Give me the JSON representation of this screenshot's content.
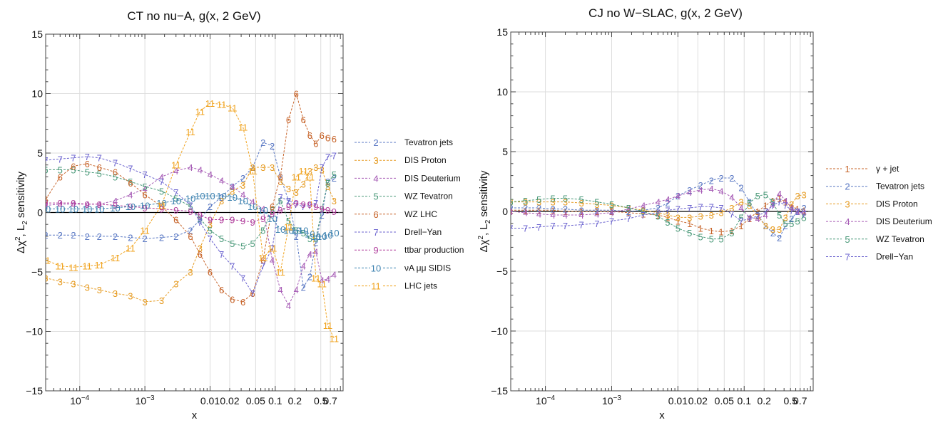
{
  "chart_data": [
    {
      "type": "line",
      "title": "CT no nu−A, g(x, 2 GeV)",
      "xlabel": "x",
      "ylabel_main": "Δχ",
      "ylabel_sup": "2",
      "ylabel_mid": ", L",
      "ylabel_sub": "2",
      "ylabel_end": " sensitivity",
      "xscale": "log",
      "xlim": [
        3e-05,
        1.1
      ],
      "ylim": [
        -15,
        15
      ],
      "y_ticks": [
        -15,
        -10,
        -5,
        0,
        5,
        10,
        15
      ],
      "y_tick_labels": [
        "−15",
        "−10",
        "−5",
        "0",
        "5",
        "10",
        "15"
      ],
      "x_major_ticks": [
        {
          "v": 0.0001,
          "base": "10",
          "exp": "−4"
        },
        {
          "v": 0.001,
          "base": "10",
          "exp": "−3"
        },
        {
          "v": 0.01,
          "label": "0.01"
        },
        {
          "v": 0.02,
          "label": "0.02"
        },
        {
          "v": 0.05,
          "label": "0.05"
        },
        {
          "v": 0.1,
          "label": "0.1"
        },
        {
          "v": 0.2,
          "label": "0.2"
        },
        {
          "v": 0.5,
          "label": "0.5"
        },
        {
          "v": 0.7,
          "label": "0.7"
        }
      ],
      "grid": true,
      "legend_position": "right",
      "x": [
        3e-05,
        5e-05,
        8e-05,
        0.00013,
        0.0002,
        0.00035,
        0.0006,
        0.001,
        0.0018,
        0.003,
        0.005,
        0.007,
        0.01,
        0.015,
        0.022,
        0.032,
        0.045,
        0.065,
        0.09,
        0.12,
        0.16,
        0.21,
        0.27,
        0.34,
        0.42,
        0.52,
        0.64,
        0.8
      ],
      "series": [
        {
          "name": "Tevatron jets",
          "marker": "2",
          "color": "#5b79c4",
          "values": [
            -1.9,
            -1.9,
            -1.9,
            -2.0,
            -2.0,
            -2.0,
            -2.1,
            -2.2,
            -2.1,
            -2.0,
            -1.5,
            -0.6,
            0.5,
            1.3,
            2.2,
            2.9,
            3.8,
            5.9,
            5.6,
            3.0,
            1.0,
            -2.0,
            -6.3,
            -5.4,
            -2.5,
            -0.2,
            2.6,
            2.9
          ]
        },
        {
          "name": "DIS Proton",
          "marker": "3",
          "color": "#e69c24",
          "values": [
            -5.5,
            -5.8,
            -6.0,
            -6.3,
            -6.5,
            -6.8,
            -7.0,
            -7.5,
            -7.4,
            -6.0,
            -5.0,
            -3.0,
            -1.0,
            1.0,
            1.8,
            2.3,
            3.8,
            3.8,
            3.8,
            2.6,
            2.0,
            1.7,
            2.4,
            3.5,
            3.8,
            3.6,
            2.2,
            1.0
          ]
        },
        {
          "name": "DIS Deuterium",
          "marker": "4",
          "color": "#a65bb5",
          "values": [
            0.6,
            0.7,
            0.7,
            0.7,
            0.7,
            1.0,
            1.5,
            2.0,
            3.0,
            3.5,
            3.8,
            3.6,
            3.2,
            2.7,
            2.2,
            1.5,
            0.9,
            0.3,
            -4.0,
            -6.5,
            -7.8,
            -6.5,
            -4.5,
            -3.5,
            -3.3,
            -5.7,
            -5.6,
            -5.2
          ]
        },
        {
          "name": "WZ Tevatron",
          "marker": "5",
          "color": "#4b9a7a",
          "values": [
            3.6,
            3.6,
            3.6,
            3.4,
            3.3,
            3.0,
            2.6,
            2.2,
            1.8,
            1.2,
            0.5,
            -0.5,
            -1.5,
            -2.2,
            -2.6,
            -2.8,
            -2.6,
            -1.5,
            0.2,
            1.0,
            -0.7,
            -1.5,
            -1.7,
            -2.2,
            -2.2,
            0.3,
            2.5,
            3.2
          ]
        },
        {
          "name": "WZ LHC",
          "marker": "6",
          "color": "#c7642a",
          "values": [
            1.1,
            3.0,
            3.9,
            4.1,
            3.8,
            3.4,
            2.5,
            1.5,
            0.5,
            -0.6,
            -2.0,
            -3.5,
            -5.0,
            -6.5,
            -7.3,
            -7.5,
            -6.8,
            -4.0,
            0.5,
            3.0,
            7.8,
            10.0,
            7.8,
            6.5,
            5.8,
            6.5,
            6.3,
            6.2
          ]
        },
        {
          "name": "Drell−Yan",
          "marker": "7",
          "color": "#6b63cf",
          "values": [
            4.4,
            4.5,
            4.6,
            4.7,
            4.6,
            4.2,
            3.7,
            3.2,
            2.6,
            1.7,
            0.6,
            -0.8,
            -2.2,
            -3.5,
            -4.5,
            -5.5,
            -6.8,
            -4.5,
            -3.0,
            1.3,
            1.0,
            0.7,
            0.5,
            0.6,
            0.8,
            3.8,
            4.7,
            4.8
          ]
        },
        {
          "name": "ttbar production",
          "marker": "9",
          "color": "#b03d9c",
          "values": [
            0.8,
            0.8,
            0.8,
            0.7,
            0.7,
            0.6,
            0.5,
            0.4,
            0.3,
            0.2,
            0.1,
            -0.2,
            -0.6,
            -0.6,
            -0.6,
            -0.7,
            -0.8,
            -0.5,
            -0.1,
            0.2,
            0.5,
            0.8,
            0.7,
            0.7,
            0.5,
            0.3,
            0.2,
            0.1
          ]
        },
        {
          "name": "νA μμ SIDIS",
          "marker": "10",
          "color": "#3d82b0",
          "values": [
            0.3,
            0.3,
            0.3,
            0.3,
            0.3,
            0.4,
            0.5,
            0.6,
            0.8,
            1.0,
            1.2,
            1.4,
            1.4,
            1.4,
            1.3,
            1.0,
            0.5,
            0.2,
            -0.5,
            -1.4,
            -1.5,
            -1.5,
            -1.5,
            -1.8,
            -2.0,
            -2.0,
            -1.9,
            -1.7
          ]
        },
        {
          "name": "LHC jets",
          "marker": "11",
          "color": "#f0a21c",
          "values": [
            -4.0,
            -4.5,
            -4.6,
            -4.5,
            -4.4,
            -3.8,
            -3.0,
            -1.5,
            0.6,
            4.0,
            6.8,
            8.5,
            9.2,
            9.1,
            8.8,
            7.2,
            3.5,
            -3.8,
            -3.0,
            -5.0,
            -1.2,
            3.0,
            3.5,
            3.0,
            -5.5,
            -6.0,
            -9.5,
            -10.6
          ]
        }
      ]
    },
    {
      "type": "line",
      "title": "CJ no W−SLAC, g(x, 2 GeV)",
      "xlabel": "x",
      "ylabel_main": "Δχ",
      "ylabel_sup": "2",
      "ylabel_mid": ", L",
      "ylabel_sub": "2",
      "ylabel_end": " sensitivity",
      "xscale": "log",
      "xlim": [
        3e-05,
        1.1
      ],
      "ylim": [
        -15,
        15
      ],
      "y_ticks": [
        -15,
        -10,
        -5,
        0,
        5,
        10,
        15
      ],
      "y_tick_labels": [
        "−15",
        "−10",
        "−5",
        "0",
        "5",
        "10",
        "15"
      ],
      "x_major_ticks": [
        {
          "v": 0.0001,
          "base": "10",
          "exp": "−4"
        },
        {
          "v": 0.001,
          "base": "10",
          "exp": "−3"
        },
        {
          "v": 0.01,
          "label": "0.01"
        },
        {
          "v": 0.02,
          "label": "0.02"
        },
        {
          "v": 0.05,
          "label": "0.05"
        },
        {
          "v": 0.1,
          "label": "0.1"
        },
        {
          "v": 0.2,
          "label": "0.2"
        },
        {
          "v": 0.5,
          "label": "0.5"
        },
        {
          "v": 0.7,
          "label": "0.7"
        }
      ],
      "grid": true,
      "legend_position": "right",
      "x": [
        3e-05,
        5e-05,
        8e-05,
        0.00013,
        0.0002,
        0.00035,
        0.0006,
        0.001,
        0.0018,
        0.003,
        0.005,
        0.007,
        0.01,
        0.015,
        0.022,
        0.032,
        0.045,
        0.065,
        0.09,
        0.12,
        0.16,
        0.21,
        0.27,
        0.34,
        0.42,
        0.52,
        0.64,
        0.8
      ],
      "series": [
        {
          "name": "γ + jet",
          "marker": "1",
          "color": "#c7642a",
          "values": [
            0.1,
            0.1,
            0.1,
            0.1,
            0.0,
            0.0,
            0.0,
            0.0,
            -0.1,
            -0.2,
            -0.3,
            -0.5,
            -0.8,
            -1.0,
            -1.4,
            -1.6,
            -1.7,
            -1.6,
            -1.2,
            -0.6,
            0.0,
            0.5,
            0.9,
            1.1,
            0.8,
            0.4,
            0.2,
            0.1
          ]
        },
        {
          "name": "Tevatron jets",
          "marker": "2",
          "color": "#5b79c4",
          "values": [
            0.3,
            0.3,
            0.3,
            0.2,
            0.2,
            0.1,
            0.1,
            0.1,
            0.0,
            0.1,
            0.3,
            0.7,
            1.3,
            1.8,
            2.2,
            2.6,
            2.8,
            2.8,
            2.0,
            0.8,
            -0.3,
            -1.2,
            -1.8,
            -2.2,
            -1.2,
            -0.6,
            0.0,
            0.3
          ]
        },
        {
          "name": "DIS Proton",
          "marker": "3",
          "color": "#e69c24",
          "values": [
            0.8,
            0.8,
            0.8,
            0.8,
            0.8,
            0.7,
            0.6,
            0.5,
            0.3,
            0.1,
            -0.1,
            -0.3,
            -0.5,
            -0.5,
            -0.4,
            -0.3,
            -0.1,
            0.3,
            0.8,
            0.5,
            -0.4,
            -1.2,
            -1.5,
            -1.5,
            -0.5,
            0.6,
            1.3,
            1.4
          ]
        },
        {
          "name": "DIS Deuterium",
          "marker": "4",
          "color": "#a65bb5",
          "values": [
            0.0,
            -0.1,
            -0.2,
            -0.3,
            -0.3,
            -0.3,
            -0.2,
            -0.1,
            0.2,
            0.5,
            0.8,
            1.0,
            1.3,
            1.6,
            1.8,
            1.9,
            1.7,
            1.2,
            0.3,
            -0.5,
            -0.6,
            -0.3,
            0.6,
            1.5,
            0.9,
            0.3,
            0.0,
            -0.1
          ]
        },
        {
          "name": "WZ Tevatron",
          "marker": "5",
          "color": "#4b9a7a",
          "values": [
            0.8,
            0.9,
            1.0,
            1.1,
            1.1,
            1.0,
            0.8,
            0.6,
            0.3,
            0.0,
            -0.4,
            -0.9,
            -1.4,
            -1.8,
            -2.1,
            -2.3,
            -2.3,
            -1.8,
            -0.5,
            0.7,
            1.3,
            1.4,
            0.8,
            -0.3,
            -1.0,
            -1.0,
            -0.8,
            -0.5
          ]
        },
        {
          "name": "Drell−Yan",
          "marker": "7",
          "color": "#6b63cf",
          "values": [
            -1.4,
            -1.4,
            -1.3,
            -1.2,
            -1.2,
            -1.1,
            -1.0,
            -0.8,
            -0.6,
            -0.3,
            -0.1,
            0.1,
            0.2,
            0.3,
            0.4,
            0.4,
            0.3,
            -0.2,
            -0.8,
            -0.6,
            -0.4,
            0.0,
            0.5,
            0.8,
            0.5,
            0.1,
            0.0,
            -0.2
          ]
        }
      ]
    }
  ]
}
